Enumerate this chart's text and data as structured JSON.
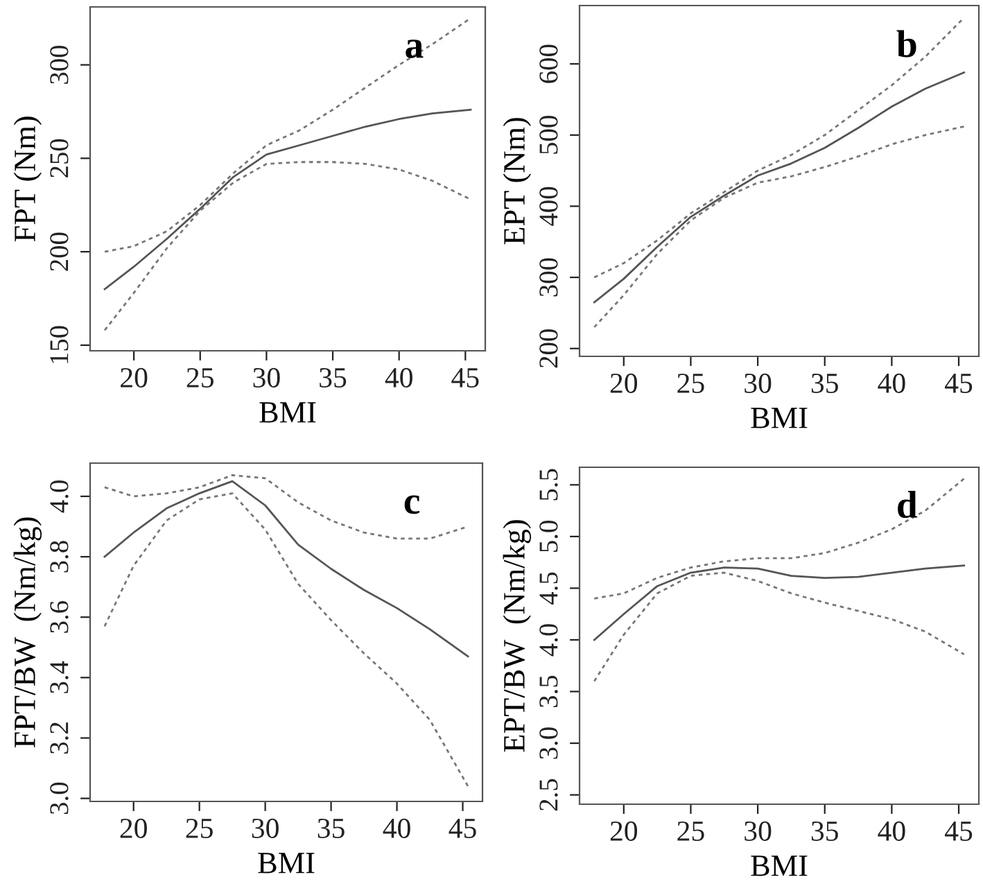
{
  "chart_data": [
    {
      "type": "line",
      "xlabel": "BMI",
      "ylabel": "FPT (Nm)",
      "annotations": [
        "a"
      ],
      "xlim": [
        16.7,
        46.5
      ],
      "xticks": [
        20,
        25,
        30,
        35,
        40,
        45
      ],
      "ylim": [
        147,
        331
      ],
      "yticks": [
        150,
        200,
        250,
        300
      ],
      "grid": false,
      "x": [
        17.8,
        20,
        22.5,
        25,
        27.5,
        30,
        32.5,
        35,
        37.5,
        40,
        42.5,
        45.4
      ],
      "series": [
        {
          "color": "#555555",
          "line_style": "solid",
          "values": [
            180,
            192,
            207,
            223,
            240,
            252,
            257,
            262,
            267,
            271,
            274,
            276
          ]
        },
        {
          "color": "#777777",
          "line_style": "dotted",
          "values": [
            200,
            203,
            211,
            225,
            242,
            257,
            265,
            276,
            288,
            300,
            311,
            325
          ]
        },
        {
          "color": "#777777",
          "line_style": "dotted",
          "values": [
            158,
            178,
            202,
            222,
            237,
            247,
            248,
            248,
            247,
            244,
            238,
            228
          ]
        }
      ]
    },
    {
      "type": "line",
      "xlabel": "BMI",
      "ylabel": "EPT (Nm)",
      "annotations": [
        "b"
      ],
      "xlim": [
        16.7,
        46.5
      ],
      "xticks": [
        20,
        25,
        30,
        35,
        40,
        45
      ],
      "ylim": [
        189,
        682
      ],
      "yticks": [
        200,
        300,
        400,
        500,
        600
      ],
      "grid": false,
      "x": [
        17.8,
        20,
        22.5,
        25,
        27.5,
        30,
        32.5,
        35,
        37.5,
        40,
        42.5,
        45.4
      ],
      "series": [
        {
          "color": "#555555",
          "line_style": "solid",
          "values": [
            265,
            298,
            343,
            385,
            415,
            443,
            460,
            482,
            510,
            540,
            565,
            588
          ]
        },
        {
          "color": "#777777",
          "line_style": "dotted",
          "values": [
            300,
            320,
            352,
            390,
            420,
            450,
            472,
            500,
            535,
            570,
            610,
            665
          ]
        },
        {
          "color": "#777777",
          "line_style": "dotted",
          "values": [
            230,
            275,
            333,
            380,
            412,
            433,
            442,
            455,
            470,
            487,
            500,
            512
          ]
        }
      ]
    },
    {
      "type": "line",
      "xlabel": "BMI",
      "ylabel": "FPT/BW  (Nm/kg)",
      "annotations": [
        "c"
      ],
      "xlim": [
        16.7,
        46.5
      ],
      "xticks": [
        20,
        25,
        30,
        35,
        40,
        45
      ],
      "ylim": [
        2.99,
        4.11
      ],
      "yticks": [
        {
          "value": 3.0,
          "label": "3.0"
        },
        {
          "value": 3.2,
          "label": "3.2"
        },
        {
          "value": 3.4,
          "label": "3.4"
        },
        {
          "value": 3.6,
          "label": "3.6"
        },
        {
          "value": 3.8,
          "label": "3.8"
        },
        {
          "value": 4.0,
          "label": "4.0"
        }
      ],
      "grid": false,
      "x": [
        17.8,
        20,
        22.5,
        25,
        27.5,
        30,
        32.5,
        35,
        37.5,
        40,
        42.5,
        45.4
      ],
      "series": [
        {
          "color": "#555555",
          "line_style": "solid",
          "values": [
            3.8,
            3.88,
            3.96,
            4.01,
            4.05,
            3.97,
            3.84,
            3.76,
            3.69,
            3.63,
            3.56,
            3.47
          ]
        },
        {
          "color": "#777777",
          "line_style": "dotted",
          "values": [
            4.03,
            4.0,
            4.01,
            4.03,
            4.07,
            4.06,
            3.98,
            3.92,
            3.88,
            3.86,
            3.86,
            3.9
          ]
        },
        {
          "color": "#777777",
          "line_style": "dotted",
          "values": [
            3.57,
            3.77,
            3.92,
            3.99,
            4.01,
            3.89,
            3.71,
            3.59,
            3.48,
            3.38,
            3.26,
            3.04
          ]
        }
      ]
    },
    {
      "type": "line",
      "xlabel": "BMI",
      "ylabel": "EPT/BW  (Nm/kg)",
      "annotations": [
        "d"
      ],
      "xlim": [
        16.7,
        46.5
      ],
      "xticks": [
        20,
        25,
        30,
        35,
        40,
        45
      ],
      "ylim": [
        2.41,
        5.67
      ],
      "yticks": [
        {
          "value": 2.5,
          "label": "2.5"
        },
        {
          "value": 3.0,
          "label": "3.0"
        },
        {
          "value": 3.5,
          "label": "3.5"
        },
        {
          "value": 4.0,
          "label": "4.0"
        },
        {
          "value": 4.5,
          "label": "4.5"
        },
        {
          "value": 5.0,
          "label": "5.0"
        },
        {
          "value": 5.5,
          "label": "5.5"
        }
      ],
      "grid": false,
      "x": [
        17.8,
        20,
        22.5,
        25,
        27.5,
        30,
        32.5,
        35,
        37.5,
        40,
        42.5,
        45.4
      ],
      "series": [
        {
          "color": "#555555",
          "line_style": "solid",
          "values": [
            4.0,
            4.25,
            4.52,
            4.65,
            4.7,
            4.69,
            4.62,
            4.6,
            4.61,
            4.65,
            4.69,
            4.72
          ]
        },
        {
          "color": "#777777",
          "line_style": "dotted",
          "values": [
            4.4,
            4.45,
            4.6,
            4.7,
            4.76,
            4.79,
            4.79,
            4.84,
            4.94,
            5.07,
            5.25,
            5.56
          ]
        },
        {
          "color": "#777777",
          "line_style": "dotted",
          "values": [
            3.6,
            4.05,
            4.45,
            4.62,
            4.65,
            4.57,
            4.45,
            4.36,
            4.28,
            4.2,
            4.08,
            3.86
          ]
        }
      ]
    }
  ]
}
